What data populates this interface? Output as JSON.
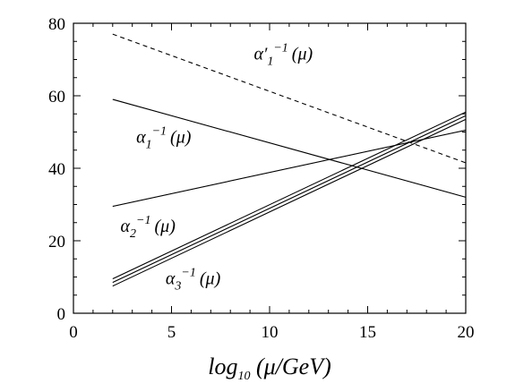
{
  "chart_data": {
    "type": "line",
    "xlabel": {
      "base": "log",
      "sub": "10",
      "rest": " (μ/GeV)"
    },
    "xlim": [
      0,
      20
    ],
    "ylim": [
      0,
      80
    ],
    "xticks": [
      "0",
      "5",
      "10",
      "15",
      "20"
    ],
    "yticks": [
      "0",
      "20",
      "40",
      "60",
      "80"
    ],
    "grid": false,
    "series": [
      {
        "id": "alpha1p",
        "style": "dashed",
        "x": [
          2,
          20
        ],
        "y": [
          77,
          41.5
        ]
      },
      {
        "id": "alpha1",
        "style": "solid",
        "x": [
          2,
          20
        ],
        "y": [
          59,
          32
        ]
      },
      {
        "id": "alpha2",
        "style": "solid",
        "x": [
          2,
          20
        ],
        "y": [
          29.5,
          50.5
        ]
      },
      {
        "id": "alpha3a",
        "style": "solid",
        "x": [
          2,
          20
        ],
        "y": [
          9.5,
          55.5
        ]
      },
      {
        "id": "alpha3b",
        "style": "solid",
        "x": [
          2,
          20
        ],
        "y": [
          8.5,
          54.5
        ]
      },
      {
        "id": "alpha3c",
        "style": "solid",
        "x": [
          2,
          20
        ],
        "y": [
          7.5,
          53.5
        ]
      }
    ],
    "annotations": [
      {
        "id": "lbl-alpha1p",
        "greek": "α",
        "prime": "′",
        "sub": "1",
        "sup": "−1",
        "arg": "(μ)",
        "x": 9.2,
        "y": 70
      },
      {
        "id": "lbl-alpha1",
        "greek": "α",
        "prime": "",
        "sub": "1",
        "sup": "−1",
        "arg": "(μ)",
        "x": 3.2,
        "y": 47
      },
      {
        "id": "lbl-alpha2",
        "greek": "α",
        "prime": "",
        "sub": "2",
        "sup": "−1",
        "arg": "(μ)",
        "x": 2.4,
        "y": 22.5
      },
      {
        "id": "lbl-alpha3",
        "greek": "α",
        "prime": "",
        "sub": "3",
        "sup": "−1",
        "arg": "(μ)",
        "x": 4.7,
        "y": 8
      }
    ]
  }
}
